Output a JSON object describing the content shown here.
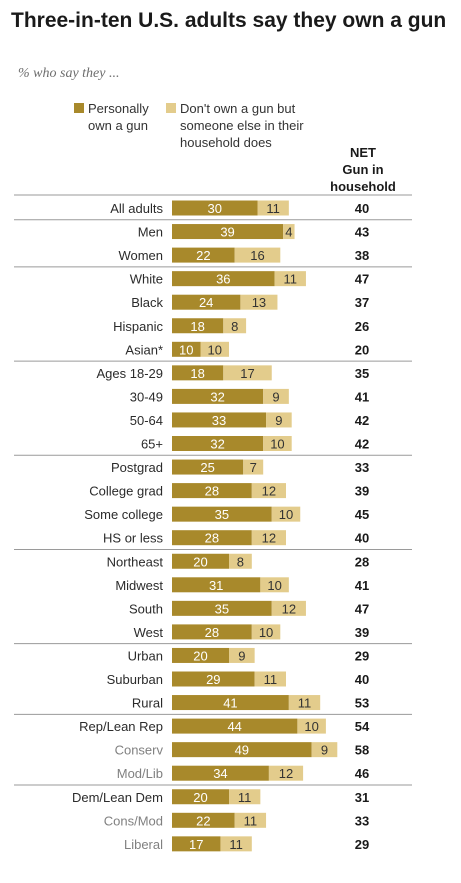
{
  "title": "Three-in-ten U.S. adults say they own a gun",
  "subtitle": "% who say they ...",
  "net_header": [
    "NET",
    "Gun in",
    "household"
  ],
  "colors": {
    "own": "#a8892b",
    "household": "#e3cc8c",
    "rule": "#9a9a9a",
    "label_dark": "#2b2b2b",
    "label_grey": "#808080"
  },
  "chart_data": {
    "type": "bar",
    "stacked": true,
    "orientation": "horizontal",
    "series": [
      {
        "name": "Personally own a gun",
        "values": [
          30,
          39,
          22,
          36,
          24,
          18,
          10,
          18,
          32,
          33,
          32,
          25,
          28,
          35,
          28,
          20,
          31,
          35,
          28,
          20,
          29,
          41,
          44,
          49,
          34,
          20,
          22,
          17
        ]
      },
      {
        "name": "Don't own a gun but someone else in their household does",
        "values": [
          11,
          4,
          16,
          11,
          13,
          8,
          10,
          17,
          9,
          9,
          10,
          7,
          12,
          10,
          12,
          8,
          10,
          12,
          10,
          9,
          11,
          11,
          10,
          9,
          12,
          11,
          11,
          11
        ]
      }
    ],
    "net_values": [
      40,
      43,
      38,
      47,
      37,
      26,
      20,
      35,
      41,
      42,
      42,
      33,
      39,
      45,
      40,
      28,
      41,
      47,
      39,
      29,
      40,
      53,
      54,
      58,
      46,
      31,
      33,
      29
    ],
    "categories": [
      "All adults",
      "Men",
      "Women",
      "White",
      "Black",
      "Hispanic",
      "Asian*",
      "Ages 18-29",
      "30-49",
      "50-64",
      "65+",
      "Postgrad",
      "College grad",
      "Some college",
      "HS or less",
      "Northeast",
      "Midwest",
      "South",
      "West",
      "Urban",
      "Suburban",
      "Rural",
      "Rep/Lean Rep",
      "Conserv",
      "Mod/Lib",
      "Dem/Lean Dem",
      "Cons/Mod",
      "Liberal"
    ],
    "subgroup_rows": [
      23,
      24,
      26,
      27
    ],
    "group_breaks_after": [
      0,
      2,
      6,
      10,
      14,
      18,
      21,
      24
    ]
  }
}
